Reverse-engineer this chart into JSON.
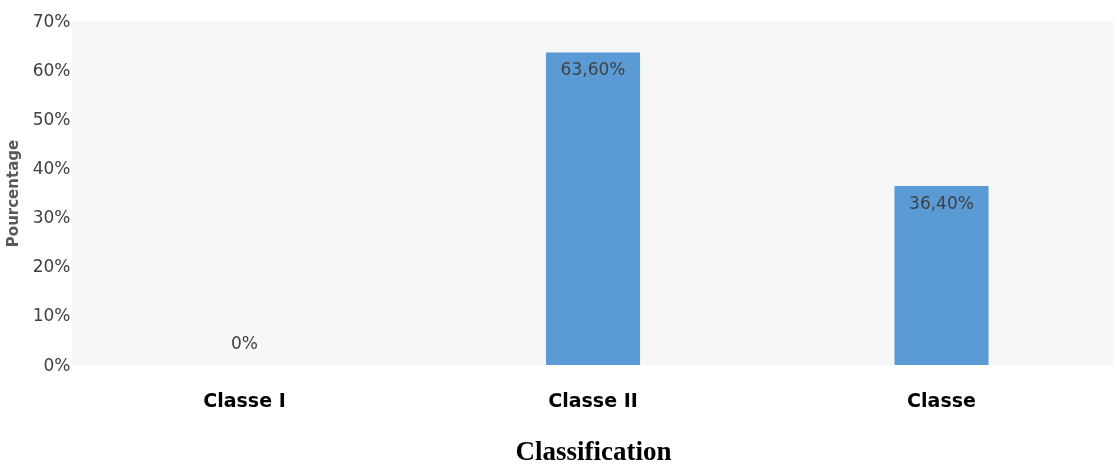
{
  "chart_data": {
    "type": "bar",
    "xlabel": "Classification",
    "ylabel": "Pourcentage",
    "categories": [
      "Classe I",
      "Classe II",
      "Classe"
    ],
    "values": [
      0,
      63.6,
      36.4
    ],
    "color": "#5b9bd5",
    "value_labels": [
      "0%",
      "63,60%",
      "36,40%"
    ],
    "ylim": [
      0,
      70
    ],
    "yticks": [
      {
        "value": 0,
        "label": "0%"
      },
      {
        "value": 10,
        "label": "10%"
      },
      {
        "value": 20,
        "label": "20%"
      },
      {
        "value": 30,
        "label": "30%"
      },
      {
        "value": 40,
        "label": "40%"
      },
      {
        "value": 50,
        "label": "50%"
      },
      {
        "value": 60,
        "label": "60%"
      },
      {
        "value": 70,
        "label": "70%"
      }
    ],
    "grid": false
  }
}
